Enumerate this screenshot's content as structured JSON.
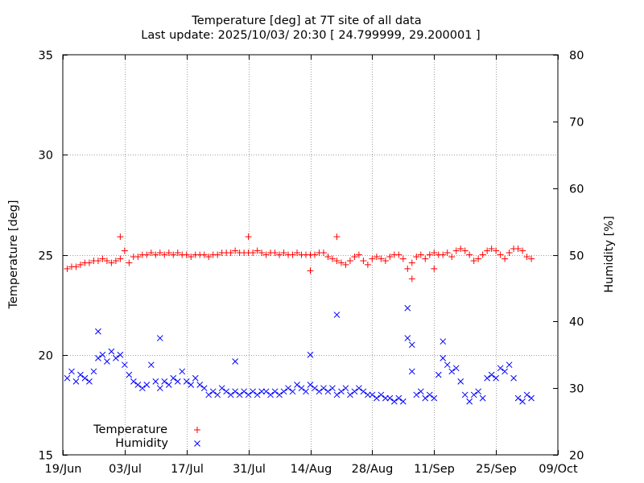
{
  "chart_data": {
    "type": "scatter",
    "title_lines": [
      "Temperature [deg] at 7T site of all data",
      "Last update: 2025/10/03/ 20:30 [ 24.799999, 29.200001 ]"
    ],
    "ylabel": "Temperature [deg]",
    "y2label": "Humidity [%]",
    "x_range": [
      "2025-06-19",
      "2025-10-09"
    ],
    "x_ticks": [
      {
        "date": "2025-06-19",
        "label": "19/Jun"
      },
      {
        "date": "2025-07-03",
        "label": "03/Jul"
      },
      {
        "date": "2025-07-17",
        "label": "17/Jul"
      },
      {
        "date": "2025-07-31",
        "label": "31/Jul"
      },
      {
        "date": "2025-08-14",
        "label": "14/Aug"
      },
      {
        "date": "2025-08-28",
        "label": "28/Aug"
      },
      {
        "date": "2025-09-11",
        "label": "11/Sep"
      },
      {
        "date": "2025-09-25",
        "label": "25/Sep"
      },
      {
        "date": "2025-10-09",
        "label": "09/Oct"
      }
    ],
    "ylim": [
      15,
      35
    ],
    "y_ticks": [
      15,
      20,
      25,
      30,
      35
    ],
    "y2lim": [
      20,
      80
    ],
    "y2_ticks": [
      20,
      30,
      40,
      50,
      60,
      70,
      80
    ],
    "grid": true,
    "legend_position": "bottom-left",
    "series": [
      {
        "name": "Temperature",
        "axis": "left",
        "marker": "+",
        "color": "#ff0000",
        "points": [
          [
            "2025-06-20",
            24.3
          ],
          [
            "2025-06-21",
            24.4
          ],
          [
            "2025-06-22",
            24.4
          ],
          [
            "2025-06-23",
            24.5
          ],
          [
            "2025-06-24",
            24.6
          ],
          [
            "2025-06-25",
            24.6
          ],
          [
            "2025-06-26",
            24.7
          ],
          [
            "2025-06-27",
            24.7
          ],
          [
            "2025-06-28",
            24.8
          ],
          [
            "2025-06-29",
            24.7
          ],
          [
            "2025-06-30",
            24.6
          ],
          [
            "2025-07-01",
            24.7
          ],
          [
            "2025-07-02",
            24.8
          ],
          [
            "2025-07-03",
            25.2
          ],
          [
            "2025-07-04",
            24.6
          ],
          [
            "2025-07-05",
            24.9
          ],
          [
            "2025-07-06",
            24.9
          ],
          [
            "2025-07-07",
            25.0
          ],
          [
            "2025-07-08",
            25.0
          ],
          [
            "2025-07-09",
            25.1
          ],
          [
            "2025-07-10",
            25.0
          ],
          [
            "2025-07-11",
            25.1
          ],
          [
            "2025-07-12",
            25.0
          ],
          [
            "2025-07-13",
            25.1
          ],
          [
            "2025-07-14",
            25.0
          ],
          [
            "2025-07-15",
            25.1
          ],
          [
            "2025-07-16",
            25.0
          ],
          [
            "2025-07-17",
            25.0
          ],
          [
            "2025-07-18",
            24.9
          ],
          [
            "2025-07-19",
            25.0
          ],
          [
            "2025-07-20",
            25.0
          ],
          [
            "2025-07-21",
            25.0
          ],
          [
            "2025-07-22",
            24.9
          ],
          [
            "2025-07-23",
            25.0
          ],
          [
            "2025-07-24",
            25.0
          ],
          [
            "2025-07-25",
            25.1
          ],
          [
            "2025-07-26",
            25.1
          ],
          [
            "2025-07-27",
            25.1
          ],
          [
            "2025-07-28",
            25.2
          ],
          [
            "2025-07-29",
            25.1
          ],
          [
            "2025-07-30",
            25.1
          ],
          [
            "2025-07-31",
            25.1
          ],
          [
            "2025-08-01",
            25.1
          ],
          [
            "2025-08-02",
            25.2
          ],
          [
            "2025-08-03",
            25.1
          ],
          [
            "2025-08-04",
            25.0
          ],
          [
            "2025-08-05",
            25.1
          ],
          [
            "2025-08-06",
            25.1
          ],
          [
            "2025-08-07",
            25.0
          ],
          [
            "2025-08-08",
            25.1
          ],
          [
            "2025-08-09",
            25.0
          ],
          [
            "2025-08-10",
            25.0
          ],
          [
            "2025-08-11",
            25.1
          ],
          [
            "2025-08-12",
            25.0
          ],
          [
            "2025-08-13",
            25.0
          ],
          [
            "2025-08-14",
            25.0
          ],
          [
            "2025-08-15",
            25.0
          ],
          [
            "2025-08-16",
            25.1
          ],
          [
            "2025-08-17",
            25.1
          ],
          [
            "2025-08-18",
            24.9
          ],
          [
            "2025-08-19",
            24.8
          ],
          [
            "2025-08-20",
            24.7
          ],
          [
            "2025-08-21",
            24.6
          ],
          [
            "2025-08-22",
            24.5
          ],
          [
            "2025-08-23",
            24.7
          ],
          [
            "2025-08-24",
            24.9
          ],
          [
            "2025-08-25",
            25.0
          ],
          [
            "2025-08-26",
            24.7
          ],
          [
            "2025-08-27",
            24.5
          ],
          [
            "2025-08-28",
            24.8
          ],
          [
            "2025-08-29",
            24.9
          ],
          [
            "2025-08-30",
            24.8
          ],
          [
            "2025-08-31",
            24.7
          ],
          [
            "2025-09-01",
            24.9
          ],
          [
            "2025-09-02",
            25.0
          ],
          [
            "2025-09-03",
            25.0
          ],
          [
            "2025-09-04",
            24.8
          ],
          [
            "2025-09-05",
            24.3
          ],
          [
            "2025-09-06",
            24.6
          ],
          [
            "2025-09-07",
            24.9
          ],
          [
            "2025-09-08",
            25.0
          ],
          [
            "2025-09-09",
            24.8
          ],
          [
            "2025-09-10",
            25.0
          ],
          [
            "2025-09-11",
            25.1
          ],
          [
            "2025-09-12",
            25.0
          ],
          [
            "2025-09-13",
            25.0
          ],
          [
            "2025-09-14",
            25.1
          ],
          [
            "2025-09-15",
            24.9
          ],
          [
            "2025-09-16",
            25.2
          ],
          [
            "2025-09-17",
            25.3
          ],
          [
            "2025-09-18",
            25.2
          ],
          [
            "2025-09-19",
            25.0
          ],
          [
            "2025-09-20",
            24.7
          ],
          [
            "2025-09-21",
            24.8
          ],
          [
            "2025-09-22",
            25.0
          ],
          [
            "2025-09-23",
            25.2
          ],
          [
            "2025-09-24",
            25.3
          ],
          [
            "2025-09-25",
            25.2
          ],
          [
            "2025-09-26",
            25.0
          ],
          [
            "2025-09-27",
            24.8
          ],
          [
            "2025-09-28",
            25.1
          ],
          [
            "2025-09-29",
            25.3
          ],
          [
            "2025-09-30",
            25.3
          ],
          [
            "2025-10-01",
            25.2
          ],
          [
            "2025-10-02",
            24.9
          ],
          [
            "2025-10-03",
            24.8
          ],
          [
            "2025-07-02",
            25.9
          ],
          [
            "2025-07-31",
            25.9
          ],
          [
            "2025-08-14",
            24.2
          ],
          [
            "2025-08-20",
            25.9
          ],
          [
            "2025-09-06",
            23.8
          ],
          [
            "2025-09-11",
            24.3
          ]
        ]
      },
      {
        "name": "Humidity",
        "axis": "right",
        "marker": "x",
        "color": "#0000ff",
        "points": [
          [
            "2025-06-20",
            31.5
          ],
          [
            "2025-06-21",
            32.5
          ],
          [
            "2025-06-22",
            31.0
          ],
          [
            "2025-06-23",
            32.0
          ],
          [
            "2025-06-24",
            31.5
          ],
          [
            "2025-06-25",
            31.0
          ],
          [
            "2025-06-26",
            32.5
          ],
          [
            "2025-06-27",
            34.5
          ],
          [
            "2025-06-28",
            35.0
          ],
          [
            "2025-06-29",
            34.0
          ],
          [
            "2025-06-30",
            35.5
          ],
          [
            "2025-07-01",
            34.5
          ],
          [
            "2025-07-02",
            35.0
          ],
          [
            "2025-07-03",
            33.5
          ],
          [
            "2025-07-04",
            32.0
          ],
          [
            "2025-07-05",
            31.0
          ],
          [
            "2025-07-06",
            30.5
          ],
          [
            "2025-07-07",
            30.0
          ],
          [
            "2025-07-08",
            30.5
          ],
          [
            "2025-07-09",
            33.5
          ],
          [
            "2025-07-10",
            31.0
          ],
          [
            "2025-07-11",
            30.0
          ],
          [
            "2025-07-12",
            31.0
          ],
          [
            "2025-07-13",
            30.5
          ],
          [
            "2025-07-14",
            31.5
          ],
          [
            "2025-07-15",
            31.0
          ],
          [
            "2025-07-16",
            32.5
          ],
          [
            "2025-07-17",
            31.0
          ],
          [
            "2025-07-18",
            30.5
          ],
          [
            "2025-07-19",
            31.5
          ],
          [
            "2025-07-20",
            30.5
          ],
          [
            "2025-07-21",
            30.0
          ],
          [
            "2025-07-22",
            29.0
          ],
          [
            "2025-07-23",
            29.5
          ],
          [
            "2025-07-24",
            29.0
          ],
          [
            "2025-07-25",
            30.0
          ],
          [
            "2025-07-26",
            29.5
          ],
          [
            "2025-07-27",
            29.0
          ],
          [
            "2025-07-28",
            29.5
          ],
          [
            "2025-07-29",
            29.0
          ],
          [
            "2025-07-30",
            29.5
          ],
          [
            "2025-07-31",
            29.0
          ],
          [
            "2025-08-01",
            29.5
          ],
          [
            "2025-08-02",
            29.0
          ],
          [
            "2025-08-03",
            29.5
          ],
          [
            "2025-08-04",
            29.5
          ],
          [
            "2025-08-05",
            29.0
          ],
          [
            "2025-08-06",
            29.5
          ],
          [
            "2025-08-07",
            29.0
          ],
          [
            "2025-08-08",
            29.5
          ],
          [
            "2025-08-09",
            30.0
          ],
          [
            "2025-08-10",
            29.5
          ],
          [
            "2025-08-11",
            30.5
          ],
          [
            "2025-08-12",
            30.0
          ],
          [
            "2025-08-13",
            29.5
          ],
          [
            "2025-08-14",
            30.5
          ],
          [
            "2025-08-15",
            30.0
          ],
          [
            "2025-08-16",
            29.5
          ],
          [
            "2025-08-17",
            30.0
          ],
          [
            "2025-08-18",
            29.5
          ],
          [
            "2025-08-19",
            30.0
          ],
          [
            "2025-08-20",
            29.0
          ],
          [
            "2025-08-21",
            29.5
          ],
          [
            "2025-08-22",
            30.0
          ],
          [
            "2025-08-23",
            29.0
          ],
          [
            "2025-08-24",
            29.5
          ],
          [
            "2025-08-25",
            30.0
          ],
          [
            "2025-08-26",
            29.5
          ],
          [
            "2025-08-27",
            29.0
          ],
          [
            "2025-08-28",
            29.0
          ],
          [
            "2025-08-29",
            28.5
          ],
          [
            "2025-08-30",
            29.0
          ],
          [
            "2025-08-31",
            28.5
          ],
          [
            "2025-09-01",
            28.5
          ],
          [
            "2025-09-02",
            28.0
          ],
          [
            "2025-09-03",
            28.5
          ],
          [
            "2025-09-04",
            28.0
          ],
          [
            "2025-09-05",
            37.5
          ],
          [
            "2025-09-06",
            36.5
          ],
          [
            "2025-09-07",
            29.0
          ],
          [
            "2025-09-08",
            29.5
          ],
          [
            "2025-09-09",
            28.5
          ],
          [
            "2025-09-10",
            29.0
          ],
          [
            "2025-09-11",
            28.5
          ],
          [
            "2025-09-12",
            32.0
          ],
          [
            "2025-09-13",
            34.5
          ],
          [
            "2025-09-14",
            33.5
          ],
          [
            "2025-09-15",
            32.5
          ],
          [
            "2025-09-16",
            33.0
          ],
          [
            "2025-09-17",
            31.0
          ],
          [
            "2025-09-18",
            29.0
          ],
          [
            "2025-09-19",
            28.0
          ],
          [
            "2025-09-20",
            29.0
          ],
          [
            "2025-09-21",
            29.5
          ],
          [
            "2025-09-22",
            28.5
          ],
          [
            "2025-09-23",
            31.5
          ],
          [
            "2025-09-24",
            32.0
          ],
          [
            "2025-09-25",
            31.5
          ],
          [
            "2025-09-26",
            33.0
          ],
          [
            "2025-09-27",
            32.5
          ],
          [
            "2025-09-28",
            33.5
          ],
          [
            "2025-09-29",
            31.5
          ],
          [
            "2025-09-30",
            28.5
          ],
          [
            "2025-10-01",
            28.0
          ],
          [
            "2025-10-02",
            29.0
          ],
          [
            "2025-10-03",
            28.5
          ],
          [
            "2025-06-27",
            38.5
          ],
          [
            "2025-07-11",
            37.5
          ],
          [
            "2025-07-28",
            34.0
          ],
          [
            "2025-08-14",
            35.0
          ],
          [
            "2025-08-20",
            41.0
          ],
          [
            "2025-09-05",
            42.0
          ],
          [
            "2025-09-13",
            37.0
          ],
          [
            "2025-09-06",
            32.5
          ]
        ]
      }
    ]
  }
}
